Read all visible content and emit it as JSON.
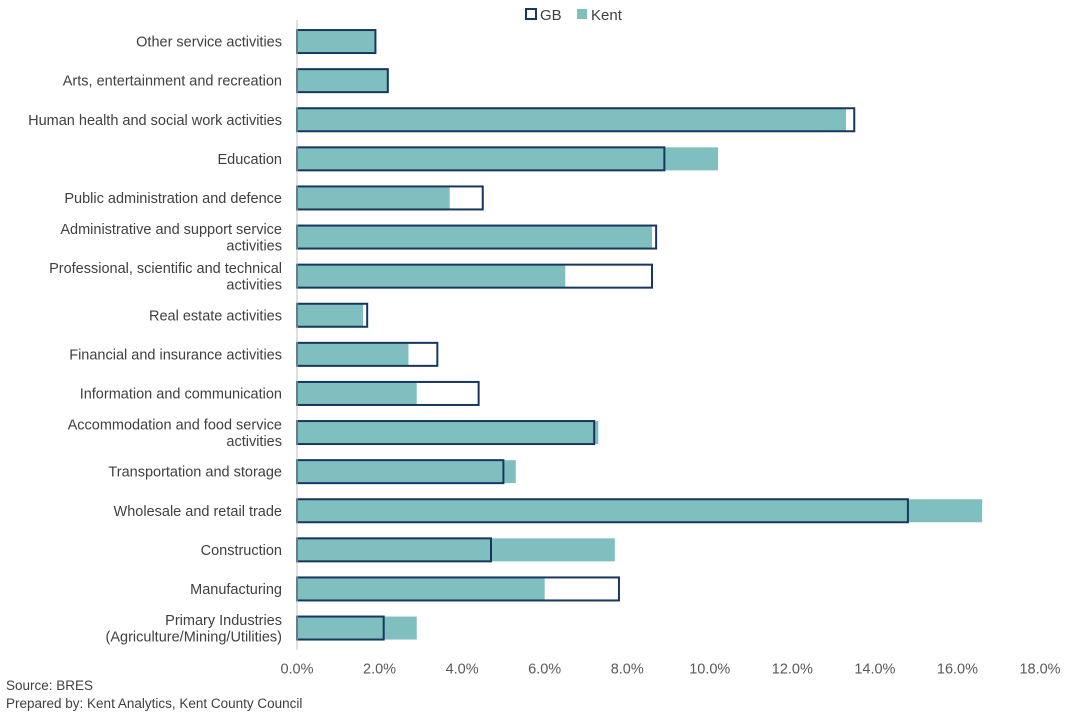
{
  "chart_data": {
    "type": "bar",
    "orientation": "horizontal",
    "title": "",
    "xlabel": "",
    "ylabel": "",
    "xlim": [
      0,
      18
    ],
    "x_ticks": [
      "0.0%",
      "2.0%",
      "4.0%",
      "6.0%",
      "8.0%",
      "10.0%",
      "12.0%",
      "14.0%",
      "16.0%",
      "18.0%"
    ],
    "grid": false,
    "legend_position": "top",
    "categories": [
      "Other service activities",
      "Arts, entertainment and recreation",
      "Human health and social work activities",
      "Education",
      "Public administration and defence",
      "Administrative and support service activities",
      "Professional, scientific and technical activities",
      "Real estate activities",
      "Financial and insurance activities",
      "Information and communication",
      "Accommodation and food service activities",
      "Transportation and storage",
      "Wholesale and retail trade",
      "Construction",
      "Manufacturing",
      "Primary Industries (Agriculture/Mining/Utilities)"
    ],
    "category_lines": [
      [
        "Other service activities"
      ],
      [
        "Arts, entertainment and recreation"
      ],
      [
        "Human health and social work activities"
      ],
      [
        "Education"
      ],
      [
        "Public administration and defence"
      ],
      [
        "Administrative and support service",
        "activities"
      ],
      [
        "Professional, scientific and technical",
        "activities"
      ],
      [
        "Real estate activities"
      ],
      [
        "Financial and insurance activities"
      ],
      [
        "Information and communication"
      ],
      [
        "Accommodation and food service",
        "activities"
      ],
      [
        "Transportation and storage"
      ],
      [
        "Wholesale and retail trade"
      ],
      [
        "Construction"
      ],
      [
        "Manufacturing"
      ],
      [
        "Primary Industries",
        "(Agriculture/Mining/Utilities)"
      ]
    ],
    "series": [
      {
        "name": "Kent",
        "style": "filled",
        "color": "#7fbfbf",
        "values": [
          1.9,
          2.2,
          13.3,
          10.2,
          3.7,
          8.6,
          6.5,
          1.6,
          2.7,
          2.9,
          7.3,
          5.3,
          16.6,
          7.7,
          6.0,
          2.9
        ]
      },
      {
        "name": "GB",
        "style": "outline",
        "color": "#17375e",
        "values": [
          1.9,
          2.2,
          13.5,
          8.9,
          4.5,
          8.7,
          8.6,
          1.7,
          3.4,
          4.4,
          7.2,
          5.0,
          14.8,
          4.7,
          7.8,
          2.1
        ]
      }
    ],
    "legend": [
      {
        "name": "GB",
        "style": "outline",
        "color": "#17375e"
      },
      {
        "name": "Kent",
        "style": "filled",
        "color": "#7fbfbf"
      }
    ]
  },
  "footnotes": {
    "source": "Source: BRES",
    "prepared_by": "Prepared by: Kent Analytics, Kent County Council"
  }
}
